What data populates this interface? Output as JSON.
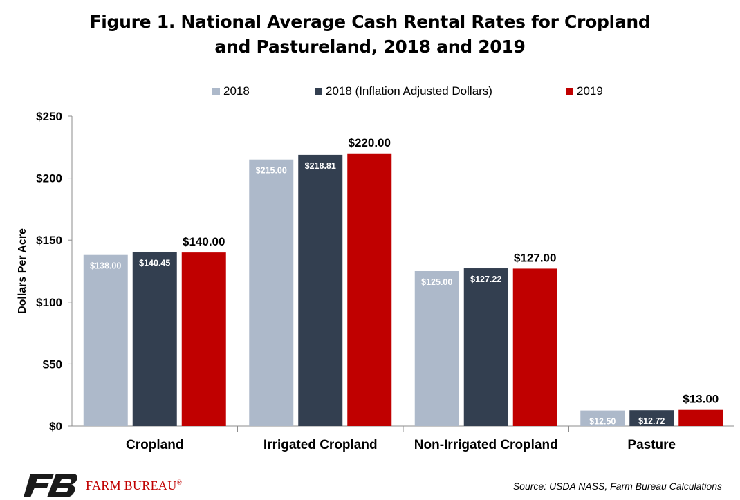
{
  "title_lines": [
    "Figure 1. National Average Cash Rental Rates for Cropland",
    "and Pastureland, 2018 and 2019"
  ],
  "source": "Source: USDA NASS, Farm Bureau Calculations",
  "logo": {
    "text": "FARM BUREAU",
    "mark": "®"
  },
  "chart_data": {
    "type": "bar",
    "title": "Figure 1. National Average Cash Rental Rates for Cropland and Pastureland, 2018 and 2019",
    "ylabel": "Dollars Per Acre",
    "xlabel": "",
    "ylim": [
      0,
      250
    ],
    "yticks": [
      0,
      50,
      100,
      150,
      200,
      250
    ],
    "ytick_labels": [
      "$0",
      "$50",
      "$100",
      "$150",
      "$200",
      "$250"
    ],
    "grid": false,
    "legend_position": "top",
    "categories": [
      "Cropland",
      "Irrigated Cropland",
      "Non-Irrigated Cropland",
      "Pasture"
    ],
    "series": [
      {
        "name": "2018",
        "color": "#adb9ca",
        "values": [
          138.0,
          215.0,
          125.0,
          12.5
        ],
        "labels": [
          "$138.00",
          "$215.00",
          "$125.00",
          "$12.50"
        ]
      },
      {
        "name": "2018 (Inflation Adjusted Dollars)",
        "color": "#333f50",
        "values": [
          140.45,
          218.81,
          127.22,
          12.72
        ],
        "labels": [
          "$140.45",
          "$218.81",
          "$127.22",
          "$12.72"
        ]
      },
      {
        "name": "2019",
        "color": "#c00000",
        "values": [
          140.0,
          220.0,
          127.0,
          13.0
        ],
        "labels": [
          "$140.00",
          "$220.00",
          "$127.00",
          "$13.00"
        ]
      }
    ]
  }
}
